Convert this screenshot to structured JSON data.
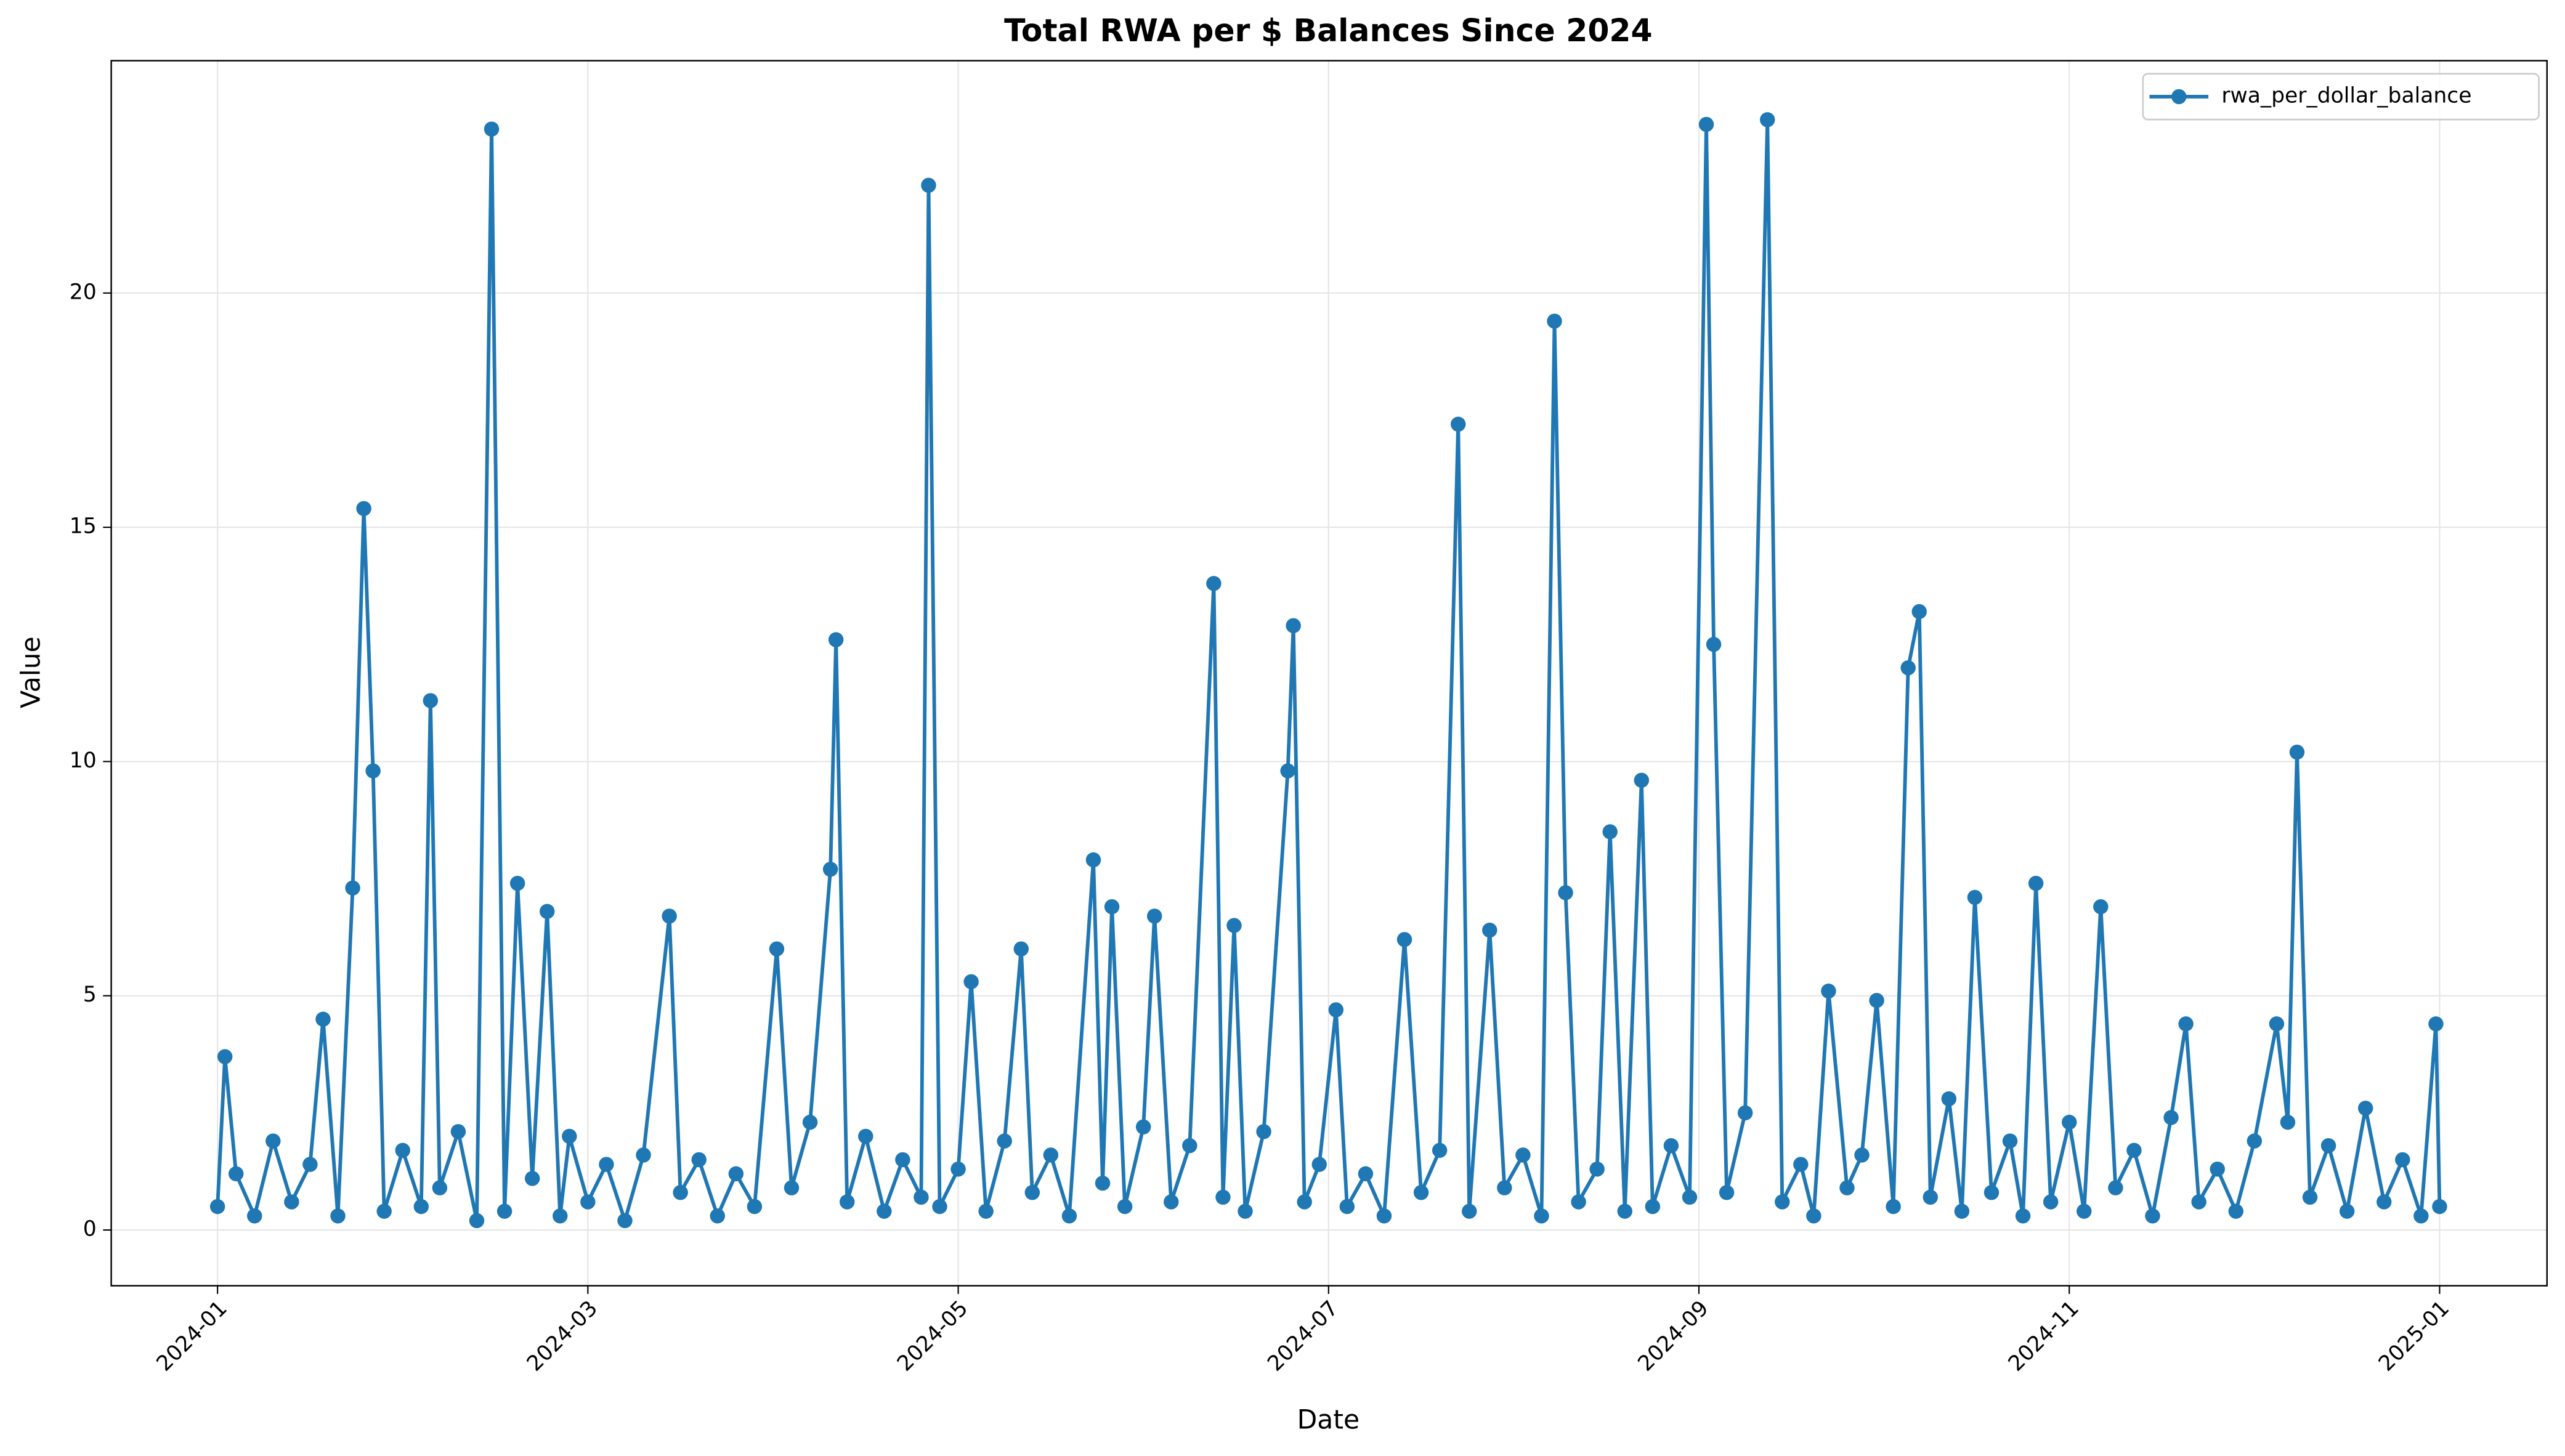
{
  "chart_data": {
    "type": "line",
    "title": "Total RWA per $ Balances Since 2024",
    "x_label": "Date",
    "y_label": "Value",
    "x": [
      0.0,
      0.04,
      0.1,
      0.2,
      0.3,
      0.4,
      0.5,
      0.57,
      0.65,
      0.73,
      0.79,
      0.84,
      0.9,
      1.0,
      1.1,
      1.15,
      1.2,
      1.3,
      1.4,
      1.48,
      1.55,
      1.62,
      1.7,
      1.78,
      1.85,
      1.9,
      2.0,
      2.1,
      2.2,
      2.3,
      2.44,
      2.5,
      2.6,
      2.7,
      2.8,
      2.9,
      3.02,
      3.1,
      3.2,
      3.31,
      3.34,
      3.4,
      3.5,
      3.6,
      3.7,
      3.8,
      3.84,
      3.9,
      4.0,
      4.07,
      4.15,
      4.25,
      4.34,
      4.4,
      4.5,
      4.6,
      4.73,
      4.78,
      4.83,
      4.9,
      5.0,
      5.06,
      5.15,
      5.25,
      5.38,
      5.43,
      5.49,
      5.55,
      5.65,
      5.78,
      5.81,
      5.87,
      5.95,
      6.04,
      6.1,
      6.2,
      6.3,
      6.41,
      6.5,
      6.6,
      6.7,
      6.76,
      6.87,
      6.95,
      7.05,
      7.15,
      7.22,
      7.28,
      7.35,
      7.45,
      7.52,
      7.6,
      7.69,
      7.75,
      7.85,
      7.95,
      8.04,
      8.08,
      8.15,
      8.25,
      8.37,
      8.45,
      8.55,
      8.62,
      8.7,
      8.8,
      8.88,
      8.96,
      9.05,
      9.13,
      9.19,
      9.25,
      9.35,
      9.42,
      9.49,
      9.58,
      9.68,
      9.75,
      9.82,
      9.9,
      10.0,
      10.08,
      10.17,
      10.25,
      10.35,
      10.45,
      10.55,
      10.63,
      10.7,
      10.8,
      10.9,
      11.0,
      11.12,
      11.18,
      11.23,
      11.3,
      11.4,
      11.5,
      11.6,
      11.7,
      11.8,
      11.9,
      11.98,
      12.0
    ],
    "series": [
      {
        "name": "rwa_per_dollar_balance",
        "color": "#1f77b4",
        "values": [
          0.5,
          3.7,
          1.2,
          0.3,
          1.9,
          0.6,
          1.4,
          4.5,
          0.3,
          7.3,
          15.4,
          9.8,
          0.4,
          1.7,
          0.5,
          11.3,
          0.9,
          2.1,
          0.2,
          23.5,
          0.4,
          7.4,
          1.1,
          6.8,
          0.3,
          2.0,
          0.6,
          1.4,
          0.2,
          1.6,
          6.7,
          0.8,
          1.5,
          0.3,
          1.2,
          0.5,
          6.0,
          0.9,
          2.3,
          7.7,
          12.6,
          0.6,
          2.0,
          0.4,
          1.5,
          0.7,
          22.3,
          0.5,
          1.3,
          5.3,
          0.4,
          1.9,
          6.0,
          0.8,
          1.6,
          0.3,
          7.9,
          1.0,
          6.9,
          0.5,
          2.2,
          6.7,
          0.6,
          1.8,
          13.8,
          0.7,
          6.5,
          0.4,
          2.1,
          9.8,
          12.9,
          0.6,
          1.4,
          4.7,
          0.5,
          1.2,
          0.3,
          6.2,
          0.8,
          1.7,
          17.2,
          0.4,
          6.4,
          0.9,
          1.6,
          0.3,
          19.4,
          7.2,
          0.6,
          1.3,
          8.5,
          0.4,
          9.6,
          0.5,
          1.8,
          0.7,
          23.6,
          12.5,
          0.8,
          2.5,
          23.7,
          0.6,
          1.4,
          0.3,
          5.1,
          0.9,
          1.6,
          4.9,
          0.5,
          12.0,
          13.2,
          0.7,
          2.8,
          0.4,
          7.1,
          0.8,
          1.9,
          0.3,
          7.4,
          0.6,
          2.3,
          0.4,
          6.9,
          0.9,
          1.7,
          0.3,
          2.4,
          4.4,
          0.6,
          1.3,
          0.4,
          1.9,
          4.4,
          2.3,
          10.2,
          0.7,
          1.8,
          0.4,
          2.6,
          0.6,
          1.5,
          0.3,
          4.4,
          0.5
        ]
      }
    ],
    "xlim": [
      -0.574,
      12.58
    ],
    "xticks": [
      {
        "value": 0,
        "label": "2024-01"
      },
      {
        "value": 2,
        "label": "2024-03"
      },
      {
        "value": 4,
        "label": "2024-05"
      },
      {
        "value": 6,
        "label": "2024-07"
      },
      {
        "value": 8,
        "label": "2024-09"
      },
      {
        "value": 10,
        "label": "2024-11"
      },
      {
        "value": 12,
        "label": "2025-01"
      }
    ],
    "ylim": [
      -1.19,
      24.96
    ],
    "yticks": [
      0,
      5,
      10,
      15,
      20
    ],
    "grid": true,
    "legend": "upper right"
  }
}
